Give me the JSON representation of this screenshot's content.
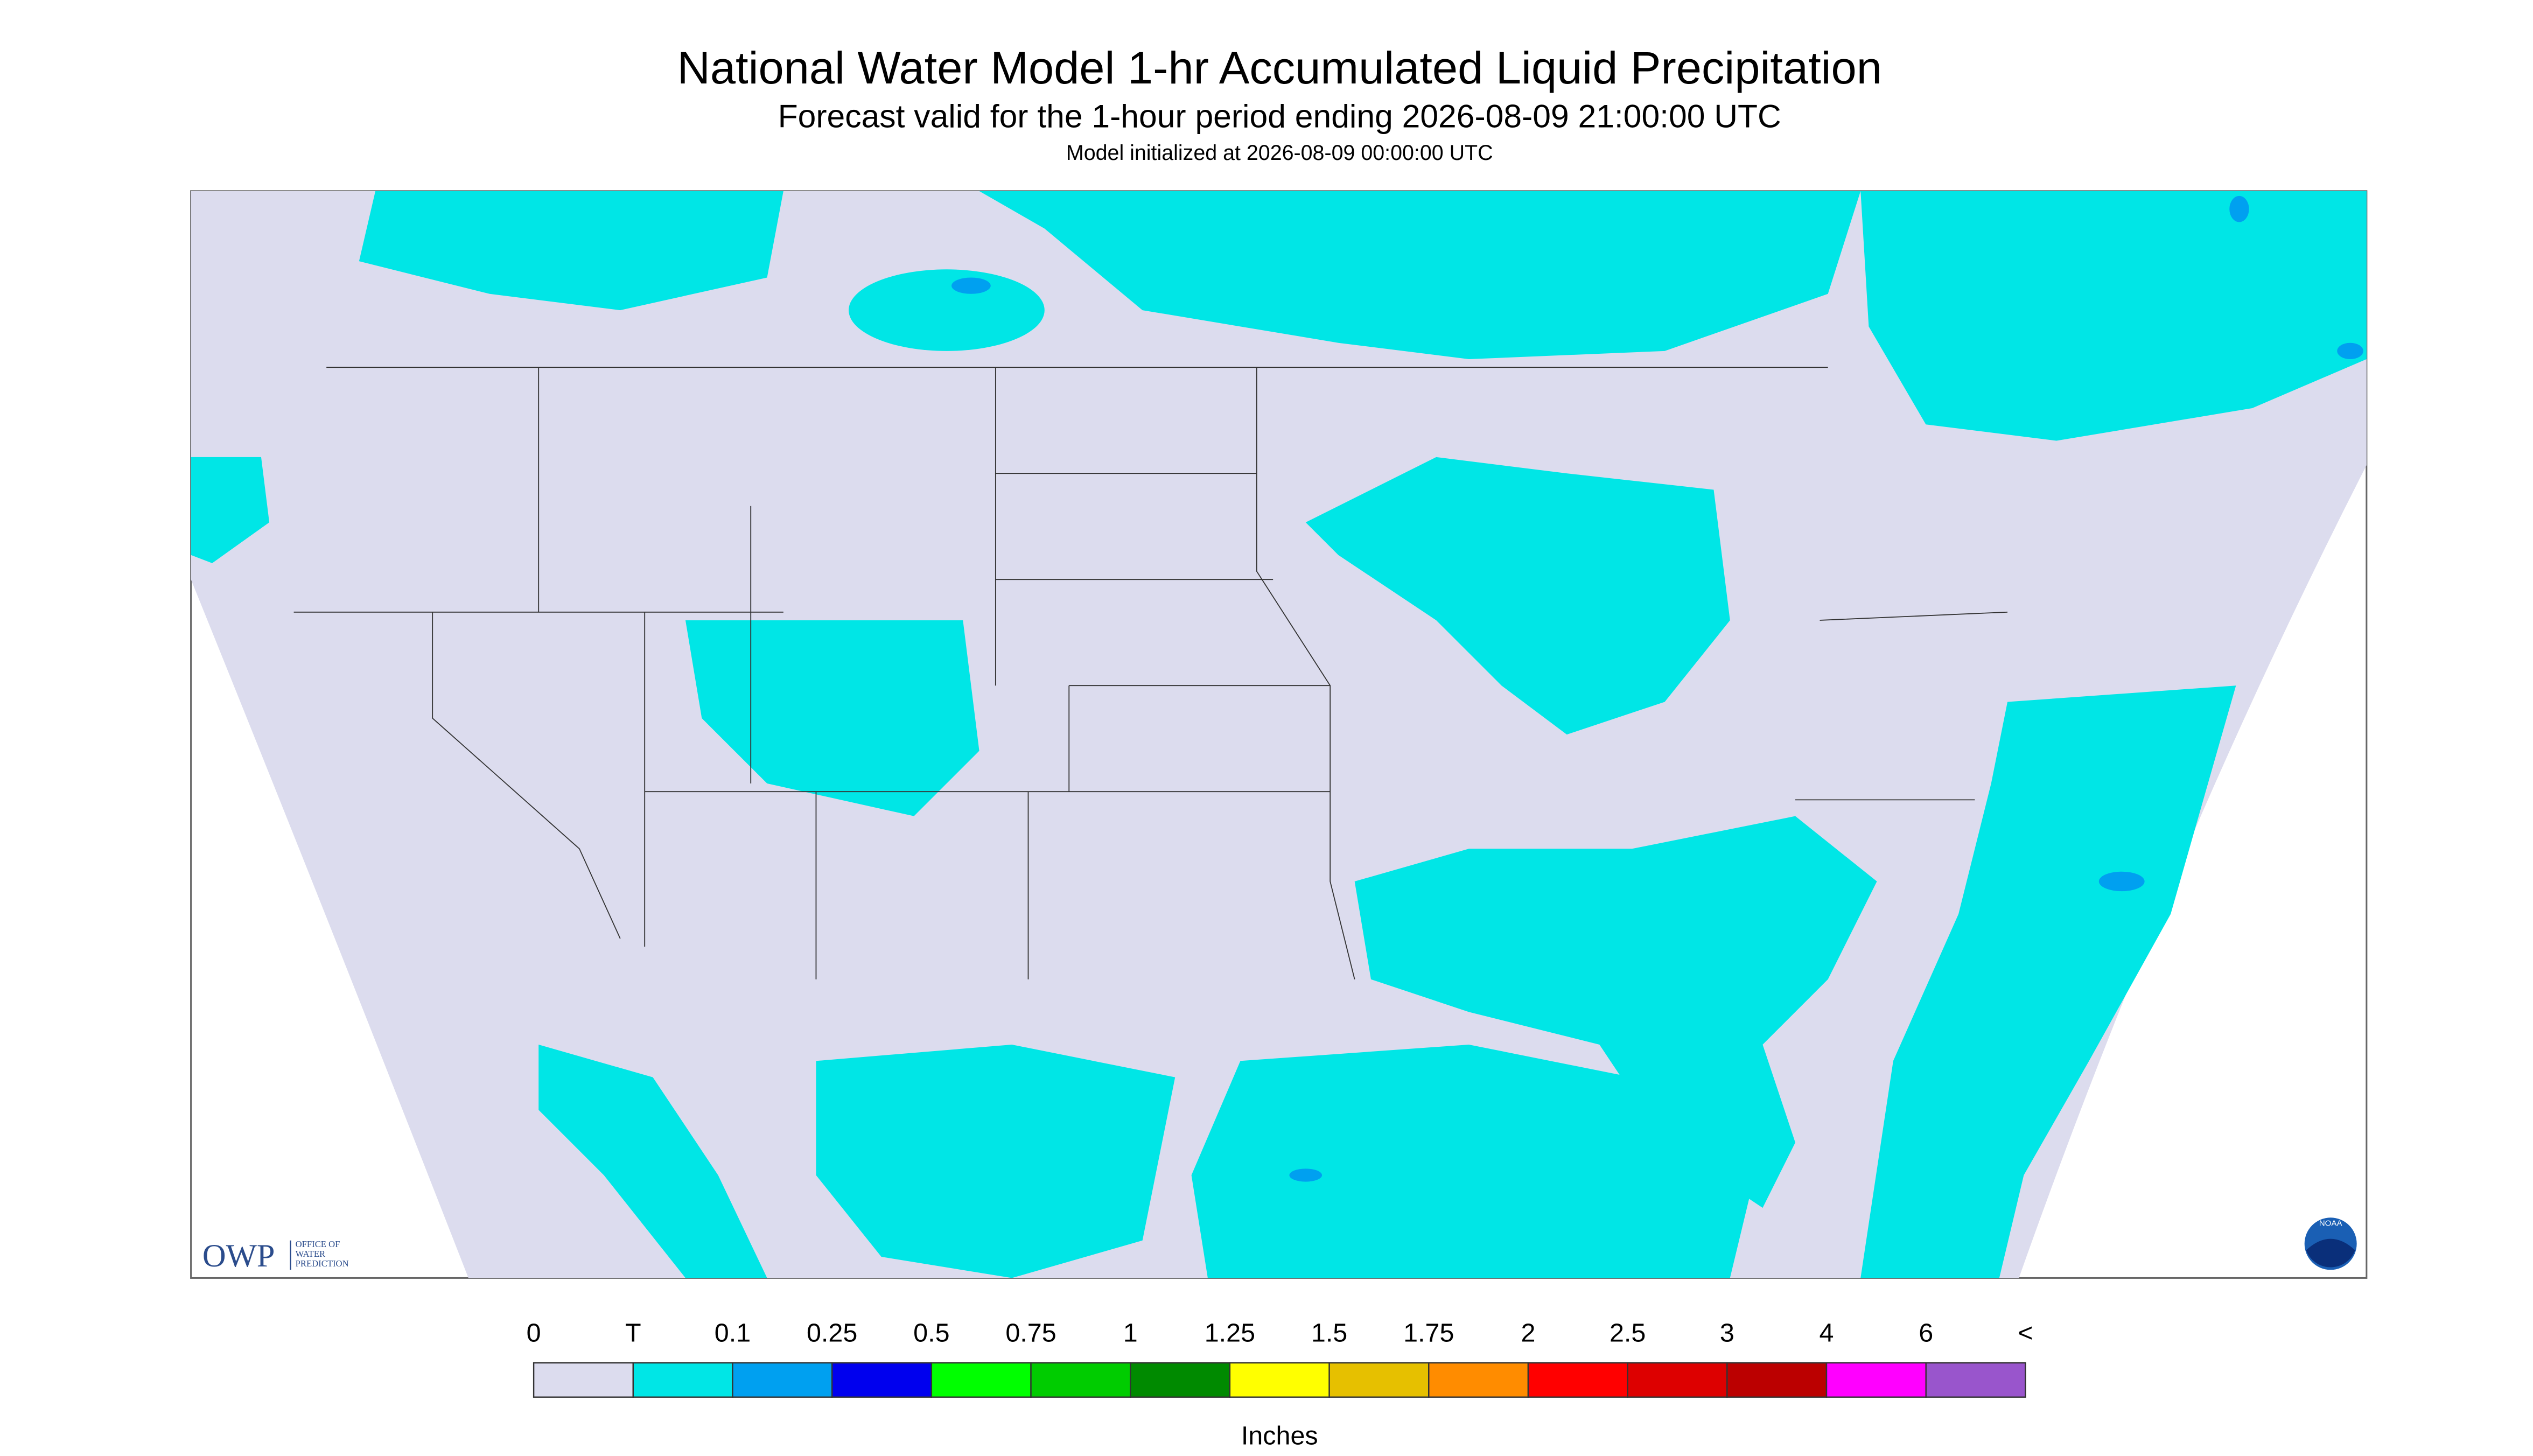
{
  "header": {
    "title": "National Water Model 1-hr Accumulated Liquid Precipitation",
    "subtitle": "Forecast valid for the 1-hour period ending 2026-08-09 21:00:00 UTC",
    "init": "Model initialized at 2026-08-09 00:00:00 UTC"
  },
  "logo": {
    "owp": "OWP",
    "office": [
      "OFFICE OF",
      "WATER",
      "PREDICTION"
    ],
    "noaa": "NOAA"
  },
  "legend": {
    "labels": [
      "0",
      "T",
      "0.1",
      "0.25",
      "0.5",
      "0.75",
      "1",
      "1.25",
      "1.5",
      "1.75",
      "2",
      "2.5",
      "3",
      "4",
      "6",
      "<"
    ],
    "colors": [
      "#dcdcee",
      "#00e6e6",
      "#00a0f0",
      "#0000ee",
      "#00ff00",
      "#00cc00",
      "#008a00",
      "#ffff00",
      "#e6c000",
      "#ff8c00",
      "#ff0000",
      "#dd0000",
      "#bb0000",
      "#ff00ff",
      "#9955cc"
    ],
    "unit": "Inches"
  }
}
